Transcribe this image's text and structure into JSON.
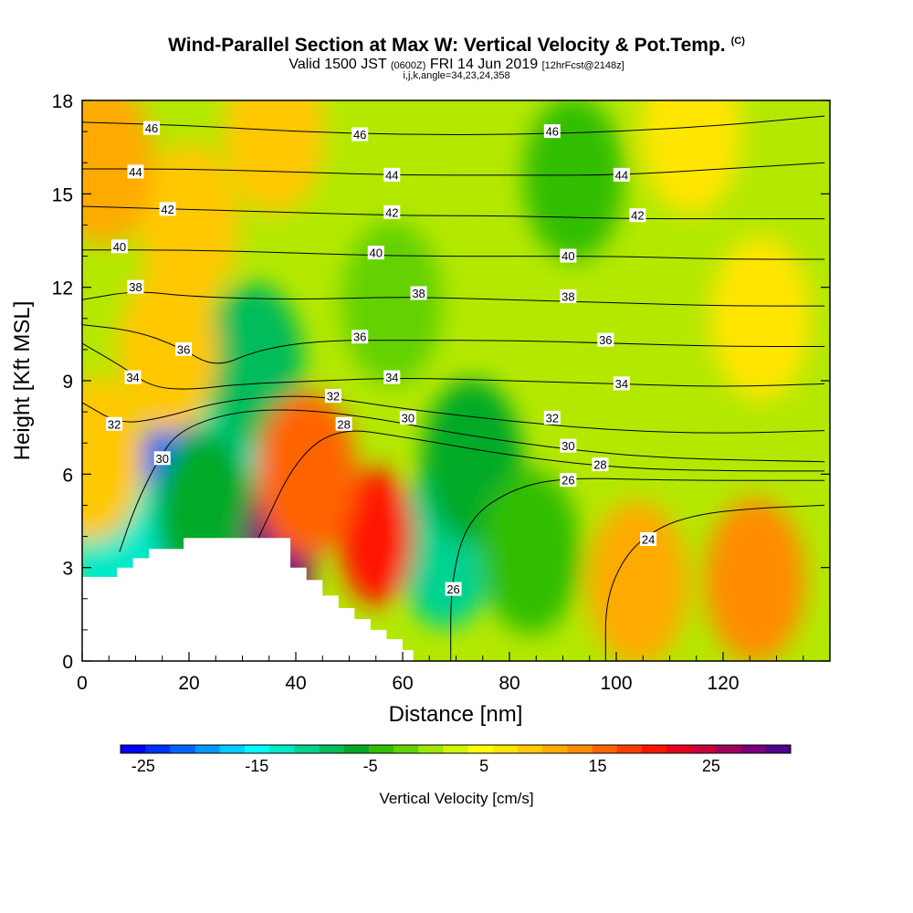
{
  "header": {
    "title": "Wind-Parallel Section at Max W: Vertical Velocity & Pot.Temp.",
    "title_mark": "(C)",
    "valid_prefix": "Valid 1500 JST",
    "valid_utc": "(0600Z)",
    "valid_date": "FRI 14 Jun 2019",
    "forecast": "[12hrFcst@2148z]",
    "ijk": "i,j,k,angle=34,23,24,358"
  },
  "chart_data": {
    "type": "heatmap",
    "xlabel": "Distance [nm]",
    "ylabel": "Height [Kft MSL]",
    "xlim": [
      0,
      140
    ],
    "ylim": [
      0,
      18
    ],
    "x_ticks": [
      0,
      20,
      40,
      60,
      80,
      100,
      120
    ],
    "y_ticks": [
      0,
      3,
      6,
      9,
      12,
      15,
      18
    ],
    "fill_field": "Vertical Velocity [cm/s]",
    "contour_field": "Potential Temperature",
    "terrain_kft": [
      [
        0,
        2.7
      ],
      [
        6.5,
        2.7
      ],
      [
        6.5,
        3.0
      ],
      [
        9.5,
        3.0
      ],
      [
        9.5,
        3.3
      ],
      [
        12.5,
        3.3
      ],
      [
        12.5,
        3.6
      ],
      [
        19,
        3.6
      ],
      [
        19,
        3.95
      ],
      [
        39,
        3.95
      ],
      [
        39,
        3.0
      ],
      [
        42,
        3.0
      ],
      [
        42,
        2.6
      ],
      [
        45,
        2.6
      ],
      [
        45,
        2.1
      ],
      [
        48,
        2.1
      ],
      [
        48,
        1.7
      ],
      [
        51,
        1.7
      ],
      [
        51,
        1.35
      ],
      [
        54,
        1.35
      ],
      [
        54,
        1.0
      ],
      [
        57,
        1.0
      ],
      [
        57,
        0.7
      ],
      [
        60,
        0.7
      ],
      [
        60,
        0.35
      ],
      [
        62,
        0.35
      ],
      [
        62,
        0
      ],
      [
        140,
        0
      ]
    ],
    "velocity_centers": [
      {
        "x": 17,
        "y": 5.8,
        "value": -22
      },
      {
        "x": 7,
        "y": 3.6,
        "value": -12
      },
      {
        "x": 32,
        "y": 7.5,
        "value": -12
      },
      {
        "x": 32,
        "y": 9.5,
        "value": -8
      },
      {
        "x": 23,
        "y": 4.8,
        "value": -6
      },
      {
        "x": 68,
        "y": 3.7,
        "value": -11
      },
      {
        "x": 73,
        "y": 6.4,
        "value": -6
      },
      {
        "x": 84,
        "y": 3.5,
        "value": -5
      },
      {
        "x": 92,
        "y": 15.5,
        "value": -3
      },
      {
        "x": 58,
        "y": 11.5,
        "value": -2
      },
      {
        "x": 37,
        "y": 3.8,
        "value": 29
      },
      {
        "x": 55,
        "y": 4.0,
        "value": 21
      },
      {
        "x": 42,
        "y": 6.0,
        "value": 15
      },
      {
        "x": 20,
        "y": 14.0,
        "value": 8
      },
      {
        "x": 16,
        "y": 10.0,
        "value": 10
      },
      {
        "x": 4,
        "y": 16.0,
        "value": 12
      },
      {
        "x": 36,
        "y": 17.0,
        "value": 10
      },
      {
        "x": 104,
        "y": 2.5,
        "value": 11
      },
      {
        "x": 126,
        "y": 2.6,
        "value": 13
      },
      {
        "x": 114,
        "y": 17.0,
        "value": 6
      },
      {
        "x": 127,
        "y": 11.0,
        "value": 6
      },
      {
        "x": 2,
        "y": 6.5,
        "value": 8
      }
    ],
    "isentropes": [
      {
        "label": "46",
        "points": [
          [
            0,
            17.3
          ],
          [
            20,
            17.2
          ],
          [
            40,
            17.0
          ],
          [
            60,
            16.9
          ],
          [
            80,
            16.9
          ],
          [
            100,
            17.0
          ],
          [
            120,
            17.2
          ],
          [
            139,
            17.5
          ]
        ]
      },
      {
        "label": "44",
        "points": [
          [
            0,
            15.8
          ],
          [
            20,
            15.8
          ],
          [
            40,
            15.7
          ],
          [
            60,
            15.6
          ],
          [
            80,
            15.6
          ],
          [
            100,
            15.6
          ],
          [
            120,
            15.8
          ],
          [
            139,
            16.0
          ]
        ]
      },
      {
        "label": "42",
        "points": [
          [
            0,
            14.6
          ],
          [
            20,
            14.5
          ],
          [
            40,
            14.4
          ],
          [
            60,
            14.3
          ],
          [
            80,
            14.3
          ],
          [
            100,
            14.2
          ],
          [
            120,
            14.2
          ],
          [
            139,
            14.2
          ]
        ]
      },
      {
        "label": "40",
        "points": [
          [
            0,
            13.2
          ],
          [
            20,
            13.2
          ],
          [
            40,
            13.1
          ],
          [
            60,
            13.0
          ],
          [
            80,
            13.0
          ],
          [
            100,
            13.0
          ],
          [
            120,
            12.9
          ],
          [
            139,
            12.9
          ]
        ]
      },
      {
        "label": "38",
        "points": [
          [
            0,
            11.6
          ],
          [
            10,
            11.9
          ],
          [
            20,
            11.7
          ],
          [
            40,
            11.6
          ],
          [
            60,
            11.7
          ],
          [
            80,
            11.6
          ],
          [
            100,
            11.5
          ],
          [
            120,
            11.4
          ],
          [
            139,
            11.4
          ]
        ]
      },
      {
        "label": "36",
        "points": [
          [
            0,
            10.8
          ],
          [
            10,
            10.6
          ],
          [
            18,
            10.1
          ],
          [
            25,
            9.4
          ],
          [
            33,
            10.0
          ],
          [
            45,
            10.3
          ],
          [
            60,
            10.3
          ],
          [
            80,
            10.3
          ],
          [
            100,
            10.2
          ],
          [
            120,
            10.1
          ],
          [
            139,
            10.1
          ]
        ]
      },
      {
        "label": "34",
        "points": [
          [
            0,
            10.2
          ],
          [
            8,
            9.4
          ],
          [
            13,
            8.8
          ],
          [
            20,
            8.7
          ],
          [
            30,
            8.9
          ],
          [
            45,
            9.0
          ],
          [
            60,
            9.1
          ],
          [
            80,
            9.0
          ],
          [
            100,
            8.9
          ],
          [
            120,
            8.8
          ],
          [
            139,
            8.9
          ]
        ]
      },
      {
        "label": "32",
        "points": [
          [
            0,
            8.3
          ],
          [
            7,
            7.6
          ],
          [
            15,
            7.8
          ],
          [
            25,
            8.3
          ],
          [
            35,
            8.5
          ],
          [
            45,
            8.5
          ],
          [
            60,
            8.1
          ],
          [
            80,
            7.7
          ],
          [
            100,
            7.4
          ],
          [
            120,
            7.3
          ],
          [
            139,
            7.4
          ]
        ]
      },
      {
        "label": "30",
        "points": [
          [
            7,
            3.5
          ],
          [
            10,
            5.0
          ],
          [
            14,
            6.4
          ],
          [
            18,
            7.4
          ],
          [
            28,
            8.0
          ],
          [
            40,
            8.1
          ],
          [
            55,
            7.8
          ],
          [
            70,
            7.3
          ],
          [
            90,
            6.8
          ],
          [
            110,
            6.5
          ],
          [
            139,
            6.4
          ]
        ]
      },
      {
        "label": "28",
        "points": [
          [
            33,
            3.95
          ],
          [
            40,
            6.5
          ],
          [
            48,
            7.5
          ],
          [
            60,
            7.2
          ],
          [
            80,
            6.6
          ],
          [
            100,
            6.2
          ],
          [
            120,
            6.1
          ],
          [
            139,
            6.1
          ]
        ]
      },
      {
        "label": "26",
        "points": [
          [
            69,
            0
          ],
          [
            69,
            2.5
          ],
          [
            72,
            4.5
          ],
          [
            80,
            5.5
          ],
          [
            90,
            5.9
          ],
          [
            110,
            5.8
          ],
          [
            139,
            5.8
          ]
        ]
      },
      {
        "label": "24",
        "points": [
          [
            98,
            0
          ],
          [
            98,
            2.0
          ],
          [
            102,
            3.5
          ],
          [
            108,
            4.3
          ],
          [
            115,
            4.7
          ],
          [
            125,
            4.9
          ],
          [
            139,
            5.0
          ]
        ]
      }
    ],
    "contour_labels": [
      {
        "text": "46",
        "x": 13,
        "y": 17.1
      },
      {
        "text": "46",
        "x": 52,
        "y": 16.9
      },
      {
        "text": "46",
        "x": 88,
        "y": 17.0
      },
      {
        "text": "44",
        "x": 10,
        "y": 15.7
      },
      {
        "text": "44",
        "x": 58,
        "y": 15.6
      },
      {
        "text": "44",
        "x": 101,
        "y": 15.6
      },
      {
        "text": "42",
        "x": 16,
        "y": 14.5
      },
      {
        "text": "42",
        "x": 58,
        "y": 14.4
      },
      {
        "text": "42",
        "x": 104,
        "y": 14.3
      },
      {
        "text": "40",
        "x": 7,
        "y": 13.3
      },
      {
        "text": "40",
        "x": 55,
        "y": 13.1
      },
      {
        "text": "40",
        "x": 91,
        "y": 13.0
      },
      {
        "text": "38",
        "x": 10,
        "y": 12.0
      },
      {
        "text": "38",
        "x": 63,
        "y": 11.8
      },
      {
        "text": "38",
        "x": 91,
        "y": 11.7
      },
      {
        "text": "36",
        "x": 19,
        "y": 10.0
      },
      {
        "text": "36",
        "x": 52,
        "y": 10.4
      },
      {
        "text": "36",
        "x": 98,
        "y": 10.3
      },
      {
        "text": "34",
        "x": 9.5,
        "y": 9.1
      },
      {
        "text": "34",
        "x": 58,
        "y": 9.1
      },
      {
        "text": "34",
        "x": 101,
        "y": 8.9
      },
      {
        "text": "32",
        "x": 6,
        "y": 7.6
      },
      {
        "text": "32",
        "x": 47,
        "y": 8.5
      },
      {
        "text": "32",
        "x": 88,
        "y": 7.8
      },
      {
        "text": "30",
        "x": 15,
        "y": 6.5
      },
      {
        "text": "30",
        "x": 61,
        "y": 7.8
      },
      {
        "text": "30",
        "x": 91,
        "y": 6.9
      },
      {
        "text": "28",
        "x": 49,
        "y": 7.6
      },
      {
        "text": "28",
        "x": 97,
        "y": 6.3
      },
      {
        "text": "26",
        "x": 69.5,
        "y": 2.3
      },
      {
        "text": "26",
        "x": 91,
        "y": 5.8
      },
      {
        "text": "24",
        "x": 106,
        "y": 3.9
      }
    ]
  },
  "colorbar": {
    "title": "Vertical Velocity [cm/s]",
    "colors": [
      "#0000ff",
      "#0030ff",
      "#0064ff",
      "#0098ff",
      "#00cdff",
      "#00ffff",
      "#00e9c8",
      "#00d290",
      "#00bc5a",
      "#00aa28",
      "#32be00",
      "#64d200",
      "#a0e600",
      "#d2f500",
      "#ffff00",
      "#ffe600",
      "#ffc800",
      "#ffaa00",
      "#ff8c00",
      "#ff6400",
      "#ff3c00",
      "#ff1400",
      "#e6001e",
      "#c8003c",
      "#a0005a",
      "#780078",
      "#50008c"
    ],
    "tick_values": [
      -25,
      -15,
      -5,
      5,
      15,
      25
    ],
    "tick_labels": [
      "-25",
      "-15",
      "-5",
      "5",
      "15",
      "25"
    ],
    "range": [
      -27,
      32
    ]
  }
}
